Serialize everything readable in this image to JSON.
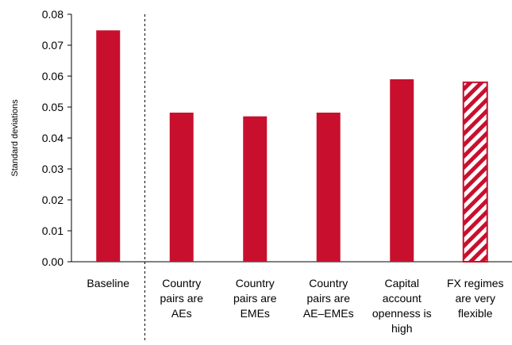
{
  "chart_data": {
    "type": "bar",
    "title": "",
    "xlabel": "",
    "ylabel": "Standard deviations",
    "ylim": [
      0,
      0.08
    ],
    "yticks": [
      "0.00",
      "0.01",
      "0.02",
      "0.03",
      "0.04",
      "0.05",
      "0.06",
      "0.07",
      "0.08"
    ],
    "categories": [
      [
        "Baseline"
      ],
      [
        "Country",
        "pairs are",
        "AEs"
      ],
      [
        "Country",
        "pairs are",
        "EMEs"
      ],
      [
        "Country",
        "pairs are",
        "AE–EMEs"
      ],
      [
        "Capital",
        "account",
        "openness is",
        "high"
      ],
      [
        "FX regimes",
        "are very",
        "flexible"
      ]
    ],
    "values": [
      0.0748,
      0.0482,
      0.047,
      0.0482,
      0.059,
      0.058
    ],
    "patterns": [
      "solid",
      "solid",
      "solid",
      "solid",
      "solid",
      "hatched"
    ],
    "color": "#c8102e",
    "grid": false,
    "separator_after_category": 0
  }
}
